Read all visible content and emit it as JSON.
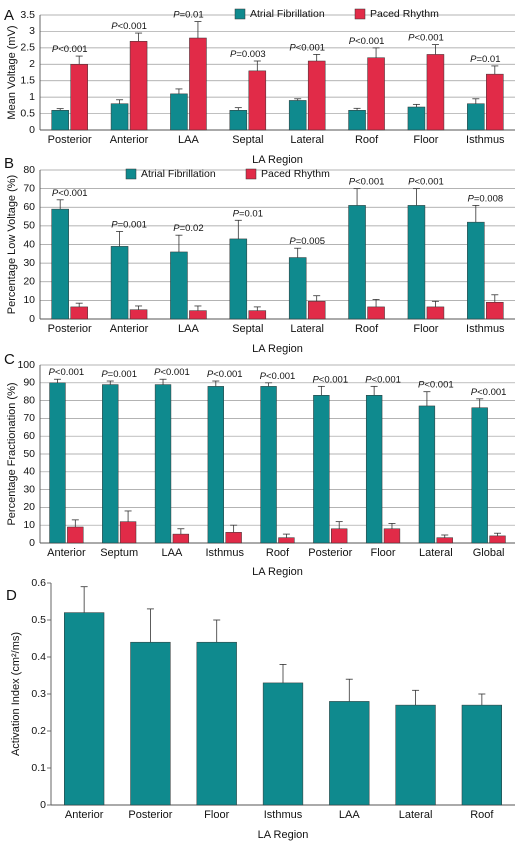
{
  "colors": {
    "af": "#0f8a8e",
    "paced": "#e12b48",
    "grid": "#9a9a9a",
    "axis": "#555555"
  },
  "legend": {
    "af": "Atrial Fibrillation",
    "paced": "Paced Rhythm"
  },
  "chart_data": [
    {
      "panel": "A",
      "type": "bar",
      "title": "",
      "xlabel": "LA Region",
      "ylabel": "Mean Voltage (mV)",
      "ylim": [
        0,
        3.5
      ],
      "yticks": [
        0,
        0.5,
        1,
        1.5,
        2,
        2.5,
        3,
        3.5
      ],
      "ytick_labels": [
        "0",
        "0.5",
        "1",
        "1.5",
        "2",
        "2.5",
        "3",
        "3.5"
      ],
      "grid": true,
      "legend_position": "top",
      "categories": [
        "Posterior",
        "Anterior",
        "LAA",
        "Septal",
        "Lateral",
        "Roof",
        "Floor",
        "Isthmus"
      ],
      "series": [
        {
          "name": "Atrial Fibrillation",
          "color_key": "af",
          "values": [
            0.6,
            0.8,
            1.1,
            0.6,
            0.9,
            0.6,
            0.7,
            0.8
          ],
          "errors": [
            0.05,
            0.12,
            0.15,
            0.08,
            0.05,
            0.06,
            0.08,
            0.15
          ]
        },
        {
          "name": "Paced Rhythm",
          "color_key": "paced",
          "values": [
            2.0,
            2.7,
            2.8,
            1.8,
            2.1,
            2.2,
            2.3,
            1.7
          ],
          "errors": [
            0.25,
            0.25,
            0.5,
            0.3,
            0.2,
            0.3,
            0.3,
            0.25
          ]
        }
      ],
      "pvalues": [
        "P<0.001",
        "P<0.001",
        "P=0.01",
        "P=0.003",
        "P<0.001",
        "P<0.001",
        "P<0.001",
        "P=0.01"
      ]
    },
    {
      "panel": "B",
      "type": "bar",
      "title": "",
      "xlabel": "LA Region",
      "ylabel": "Percentage Low Voltage (%)",
      "ylim": [
        0,
        80
      ],
      "yticks": [
        0,
        10,
        20,
        30,
        40,
        50,
        60,
        70,
        80
      ],
      "ytick_labels": [
        "0",
        "10",
        "20",
        "30",
        "40",
        "50",
        "60",
        "70",
        "80"
      ],
      "grid": true,
      "legend_position": "top",
      "categories": [
        "Posterior",
        "Anterior",
        "LAA",
        "Septal",
        "Lateral",
        "Roof",
        "Floor",
        "Isthmus"
      ],
      "series": [
        {
          "name": "Atrial Fibrillation",
          "color_key": "af",
          "values": [
            59,
            39,
            36,
            43,
            33,
            61,
            61,
            52
          ],
          "errors": [
            5,
            8,
            9,
            10,
            5,
            9,
            9,
            9
          ]
        },
        {
          "name": "Paced Rhythm",
          "color_key": "paced",
          "values": [
            6.5,
            5,
            4.5,
            4.5,
            9.5,
            6.5,
            6.5,
            9
          ],
          "errors": [
            2,
            2,
            2.5,
            2,
            3,
            4,
            3,
            4
          ]
        }
      ],
      "pvalues": [
        "P<0.001",
        "P=0.001",
        "P=0.02",
        "P=0.01",
        "P=0.005",
        "P<0.001",
        "P<0.001",
        "P=0.008"
      ]
    },
    {
      "panel": "C",
      "type": "bar",
      "title": "",
      "xlabel": "LA Region",
      "ylabel": "Percentage Fractionation (%)",
      "ylim": [
        0,
        100
      ],
      "yticks": [
        0,
        10,
        20,
        30,
        40,
        50,
        60,
        70,
        80,
        90,
        100
      ],
      "ytick_labels": [
        "0",
        "10",
        "20",
        "30",
        "40",
        "50",
        "60",
        "70",
        "80",
        "90",
        "100"
      ],
      "grid": true,
      "categories": [
        "Anterior",
        "Septum",
        "LAA",
        "Isthmus",
        "Roof",
        "Posterior",
        "Floor",
        "Lateral",
        "Global"
      ],
      "series": [
        {
          "name": "Atrial Fibrillation",
          "color_key": "af",
          "values": [
            90,
            89,
            89,
            88,
            88,
            83,
            83,
            77,
            76
          ],
          "errors": [
            2,
            2,
            3,
            3,
            2,
            5,
            5,
            8,
            5
          ]
        },
        {
          "name": "Paced Rhythm",
          "color_key": "paced",
          "values": [
            9,
            12,
            5,
            6,
            3,
            8,
            8,
            3,
            4
          ],
          "errors": [
            4,
            6,
            3,
            4,
            2,
            4,
            3,
            1.5,
            1.5
          ]
        }
      ],
      "pvalues": [
        "P<0.001",
        "P=0.001",
        "P<0.001",
        "P<0.001",
        "P<0.001",
        "P<0.001",
        "P<0.001",
        "P<0.001",
        "P<0.001"
      ]
    },
    {
      "panel": "D",
      "type": "bar",
      "title": "",
      "xlabel": "LA Region",
      "ylabel": "Activation Index (cm²/ms)",
      "ylim": [
        0,
        0.6
      ],
      "yticks": [
        0,
        0.1,
        0.2,
        0.3,
        0.4,
        0.5,
        0.6
      ],
      "ytick_labels": [
        "0",
        "0.1",
        "0.2",
        "0.3",
        "0.4",
        "0.5",
        "0.6"
      ],
      "grid": false,
      "categories": [
        "Anterior",
        "Posterior",
        "Floor",
        "Isthmus",
        "LAA",
        "Lateral",
        "Roof"
      ],
      "series": [
        {
          "color_key": "af",
          "values": [
            0.52,
            0.44,
            0.44,
            0.33,
            0.28,
            0.27,
            0.27
          ],
          "errors": [
            0.07,
            0.09,
            0.06,
            0.05,
            0.06,
            0.04,
            0.03
          ]
        }
      ]
    }
  ]
}
